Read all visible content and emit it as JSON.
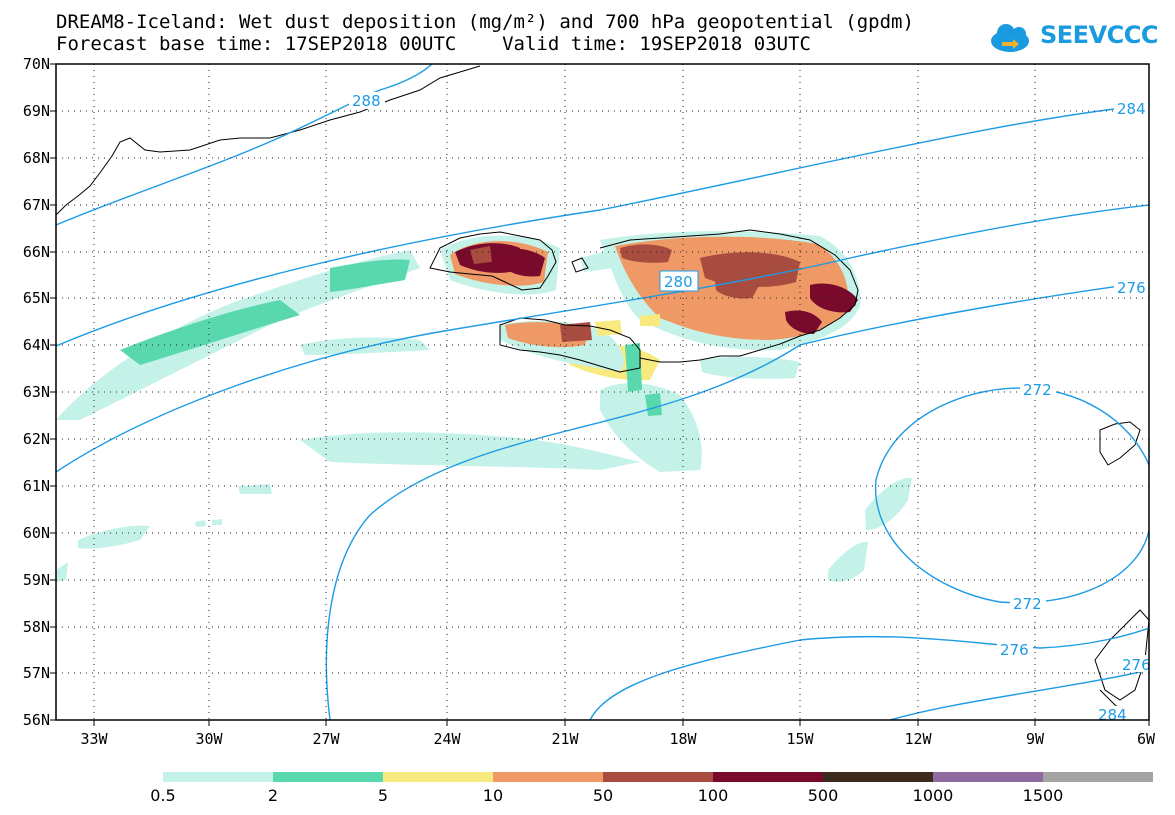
{
  "title_line1": "DREAM8-Iceland: Wet dust deposition (mg/m²) and 700 hPa geopotential (gpdm)",
  "title_line2": "Forecast base time: 17SEP2018 00UTC    Valid time: 19SEP2018 03UTC",
  "logo_text": "SEEVCCC",
  "lat_labels": [
    "70N",
    "69N",
    "68N",
    "67N",
    "66N",
    "65N",
    "64N",
    "63N",
    "62N",
    "61N",
    "60N",
    "59N",
    "58N",
    "57N",
    "56N"
  ],
  "lon_labels": [
    "33W",
    "30W",
    "27W",
    "24W",
    "21W",
    "18W",
    "15W",
    "12W",
    "9W",
    "6W"
  ],
  "contour_labels": {
    "c288": "288",
    "c284a": "284",
    "c280": "280",
    "c276a": "276",
    "c272a": "272",
    "c272b": "272",
    "c276b": "276",
    "c276c": "276",
    "c284b": "284"
  },
  "colorbar": {
    "colors": [
      "#c4f2e8",
      "#5ad8ad",
      "#f8ea7e",
      "#ee9966",
      "#a84c40",
      "#7a0a2c",
      "#3c2a1c",
      "#8e6a9e",
      "#a4a4a4"
    ],
    "labels": [
      "0.5",
      "2",
      "5",
      "10",
      "50",
      "100",
      "500",
      "1000",
      "1500"
    ]
  },
  "colors": {
    "contour": "#1c9be6",
    "frame": "#000000",
    "logo": "#1a9be0"
  }
}
